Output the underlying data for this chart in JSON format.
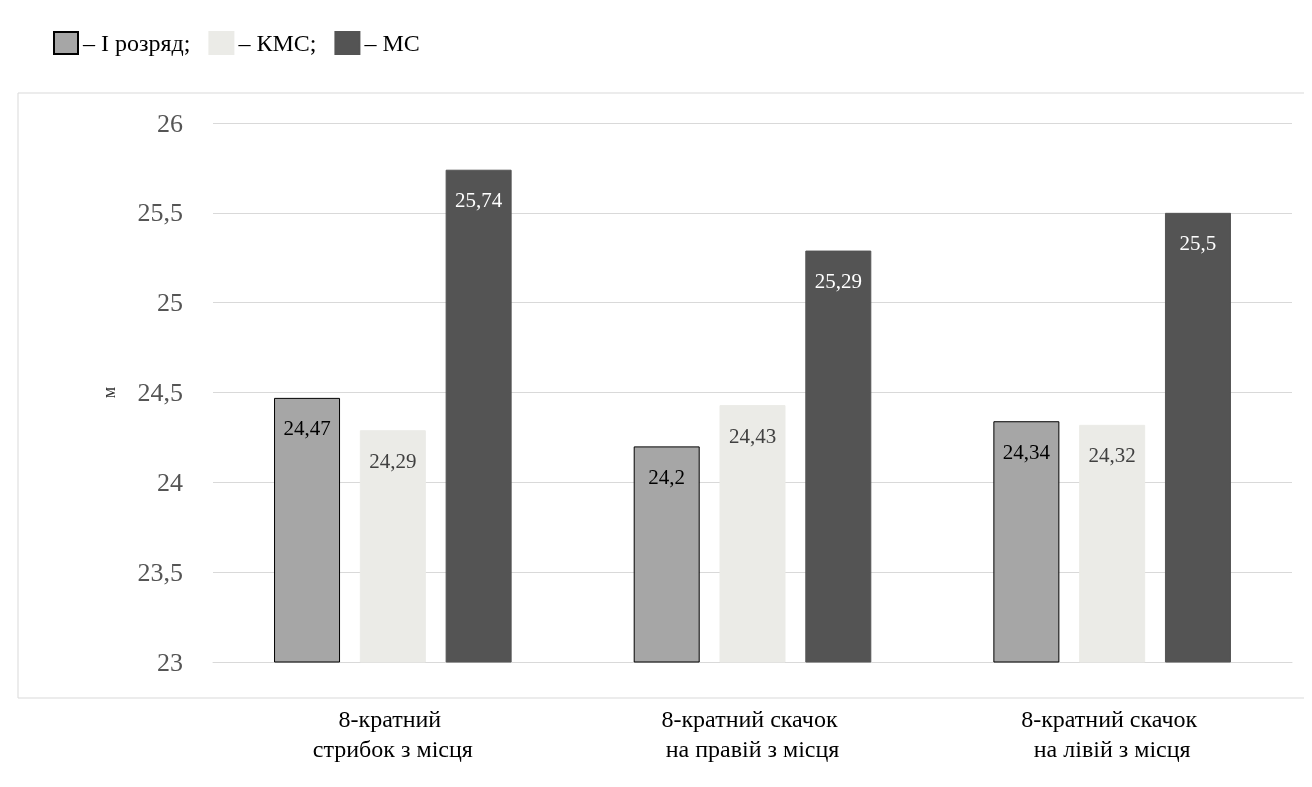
{
  "chart_data": {
    "type": "bar",
    "ylabel": "м",
    "categories": [
      "8-кратний стрибок з місця",
      "8-кратний скачок на правій з місця",
      "8-кратний скачок на лівій з місця"
    ],
    "series": [
      {
        "name": "– I розряд;",
        "color": "#a6a6a6",
        "values": [
          24.47,
          24.2,
          24.34
        ],
        "value_labels": [
          "24,47",
          "24,2",
          "24,34"
        ]
      },
      {
        "name": "– КМС;",
        "color": "#ebebe7",
        "values": [
          24.29,
          24.43,
          24.32
        ],
        "value_labels": [
          "24,29",
          "24,43",
          "24,32"
        ]
      },
      {
        "name": "– МС",
        "color": "#545454",
        "values": [
          25.74,
          25.29,
          25.5
        ],
        "value_labels": [
          "25,74",
          "25,29",
          "25,5"
        ]
      }
    ],
    "ylim": [
      23,
      26
    ],
    "yticks": [
      23,
      {
        "value": 23.5,
        "label": "23,5"
      },
      24,
      {
        "value": 24.5,
        "label": "24,5"
      },
      25,
      {
        "value": 25.5,
        "label": "25,5"
      },
      26
    ],
    "grid": "y",
    "legend": "top left"
  }
}
